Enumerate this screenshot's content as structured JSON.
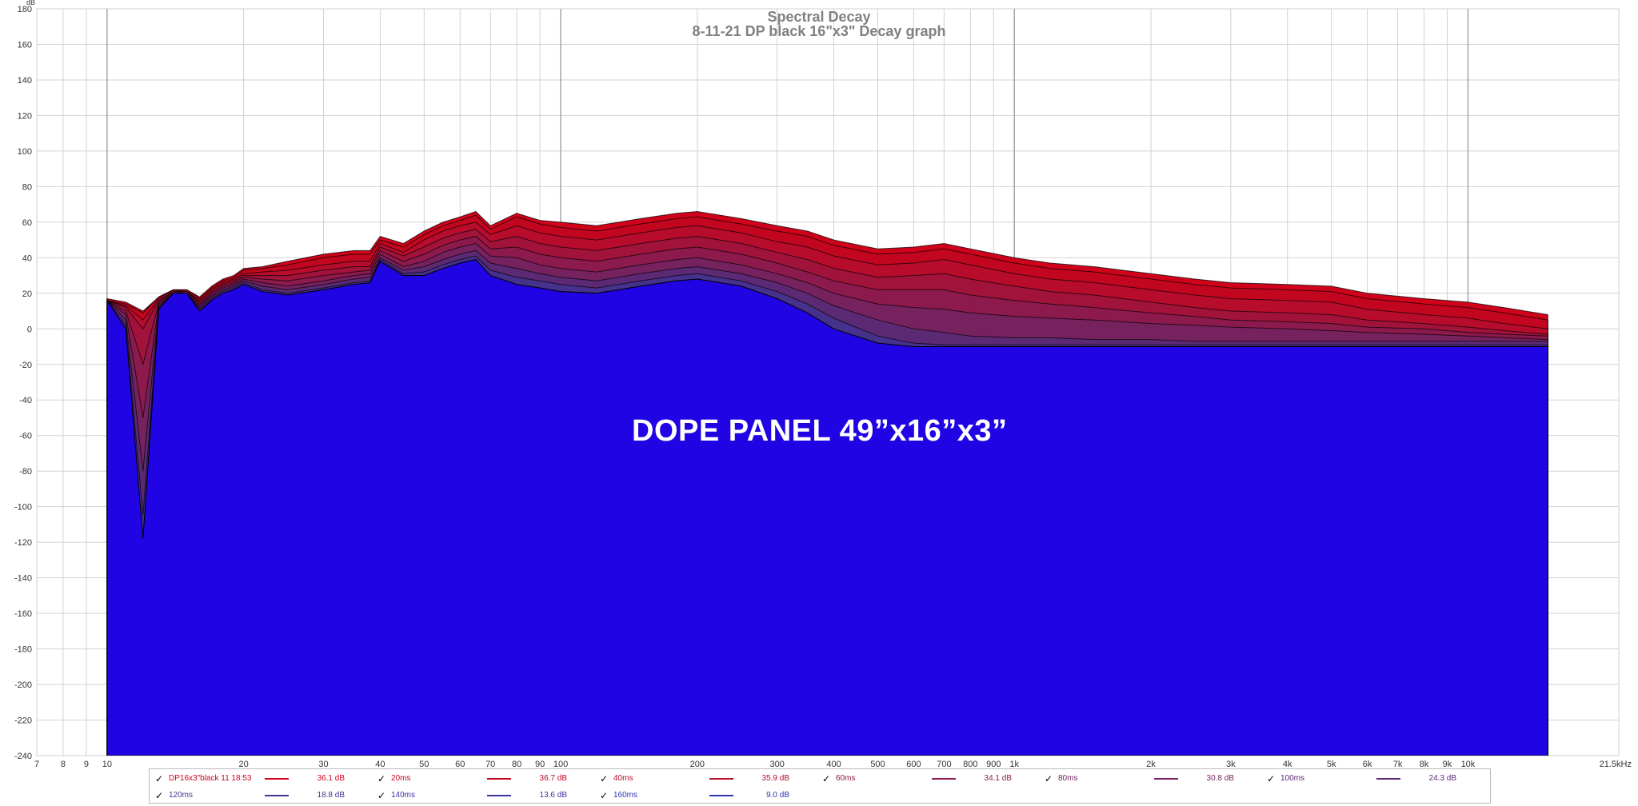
{
  "chart_data": {
    "type": "area",
    "title": "Spectral Decay",
    "subtitle": "8-11-21 DP black 16\"x3\" Decay graph",
    "ylabel": "dB",
    "xlabel": "",
    "xscale": "log",
    "xlim": [
      7,
      21500
    ],
    "ylim": [
      -240,
      180
    ],
    "grid": true,
    "y_ticks": [
      180,
      160,
      140,
      120,
      100,
      80,
      60,
      40,
      20,
      0,
      -20,
      -40,
      -60,
      -80,
      -100,
      -120,
      -140,
      -160,
      -180,
      -200,
      -220,
      -240
    ],
    "y_tick_labels": [
      "180",
      "160",
      "140",
      "120",
      "100",
      "80",
      "60",
      "40",
      "20",
      "0",
      "-20",
      "-40",
      "-60",
      "-80",
      "-100",
      "-120",
      "-140",
      "-160",
      "-180",
      "-200",
      "-220",
      "-240"
    ],
    "x_ticks": [
      7,
      8,
      9,
      10,
      20,
      30,
      40,
      50,
      60,
      70,
      80,
      90,
      100,
      200,
      300,
      400,
      500,
      600,
      700,
      800,
      900,
      1000,
      2000,
      3000,
      4000,
      5000,
      6000,
      7000,
      8000,
      9000,
      10000,
      21500
    ],
    "x_tick_labels": [
      "7",
      "8",
      "9",
      "10",
      "20",
      "30",
      "40",
      "50",
      "60",
      "70",
      "80",
      "90",
      "100",
      "200",
      "300",
      "400",
      "500",
      "600",
      "700",
      "800",
      "900",
      "1k",
      "2k",
      "3k",
      "4k",
      "5k",
      "6k",
      "7k",
      "8k",
      "9k",
      "10k",
      "21.5kHz"
    ],
    "x": [
      10,
      11,
      12,
      13,
      14,
      15,
      16,
      17,
      18,
      19,
      20,
      22,
      25,
      30,
      35,
      38,
      40,
      45,
      50,
      55,
      60,
      65,
      70,
      80,
      90,
      100,
      120,
      150,
      180,
      200,
      250,
      300,
      350,
      400,
      500,
      600,
      700,
      800,
      1000,
      1200,
      1500,
      2000,
      2500,
      3000,
      4000,
      5000,
      6000,
      8000,
      10000,
      12000,
      15000
    ],
    "series": [
      {
        "name": "DP16x3\"black 11 18:53",
        "color": "#d0021b",
        "values": [
          17,
          15,
          10,
          18,
          22,
          22,
          18,
          24,
          28,
          30,
          34,
          35,
          38,
          42,
          44,
          44,
          52,
          48,
          55,
          60,
          63,
          66,
          58,
          65,
          61,
          60,
          58,
          62,
          65,
          66,
          62,
          58,
          55,
          50,
          45,
          46,
          48,
          45,
          40,
          37,
          35,
          31,
          28,
          26,
          25,
          24,
          20,
          17,
          15,
          12,
          8
        ]
      },
      {
        "name": "20ms",
        "color": "#c3061f",
        "values": [
          16,
          14,
          9,
          18,
          22,
          22,
          17,
          23,
          27,
          29,
          33,
          34,
          36,
          40,
          42,
          42,
          50,
          46,
          53,
          58,
          61,
          64,
          56,
          63,
          59,
          57,
          55,
          59,
          62,
          63,
          59,
          55,
          52,
          47,
          42,
          43,
          45,
          42,
          37,
          34,
          32,
          28,
          25,
          23,
          22,
          21,
          17,
          14,
          12,
          9,
          5
        ]
      },
      {
        "name": "40ms",
        "color": "#b80c2c",
        "values": [
          16,
          13,
          5,
          17,
          22,
          21,
          16,
          22,
          26,
          28,
          31,
          32,
          33,
          36,
          38,
          38,
          48,
          43,
          50,
          55,
          58,
          60,
          53,
          58,
          54,
          52,
          50,
          54,
          57,
          58,
          54,
          49,
          46,
          41,
          36,
          37,
          39,
          36,
          31,
          28,
          26,
          22,
          19,
          17,
          16,
          15,
          11,
          8,
          6,
          3,
          0
        ]
      },
      {
        "name": "60ms",
        "color": "#a2133b",
        "values": [
          16,
          12,
          0,
          16,
          21,
          21,
          15,
          21,
          25,
          27,
          30,
          30,
          30,
          33,
          35,
          35,
          46,
          41,
          46,
          51,
          54,
          56,
          49,
          52,
          48,
          46,
          44,
          48,
          51,
          52,
          48,
          43,
          39,
          34,
          29,
          30,
          31,
          28,
          24,
          21,
          19,
          15,
          12,
          10,
          9,
          8,
          5,
          3,
          1,
          -1,
          -3
        ]
      },
      {
        "name": "80ms",
        "color": "#8c1a4d",
        "values": [
          16,
          10,
          -20,
          15,
          21,
          21,
          14,
          20,
          24,
          26,
          29,
          28,
          27,
          30,
          32,
          33,
          44,
          38,
          42,
          47,
          50,
          52,
          45,
          46,
          42,
          40,
          38,
          42,
          45,
          46,
          42,
          37,
          32,
          27,
          22,
          22,
          22,
          19,
          16,
          14,
          12,
          9,
          7,
          5,
          4,
          3,
          1,
          0,
          -2,
          -3,
          -4
        ]
      },
      {
        "name": "100ms",
        "color": "#76225f",
        "values": [
          16,
          8,
          -50,
          14,
          21,
          20,
          13,
          19,
          23,
          25,
          28,
          26,
          24,
          27,
          30,
          31,
          42,
          35,
          38,
          43,
          46,
          48,
          41,
          40,
          36,
          34,
          32,
          36,
          39,
          40,
          36,
          31,
          26,
          20,
          14,
          12,
          11,
          9,
          7,
          6,
          5,
          3,
          2,
          1,
          0,
          -1,
          -2,
          -3,
          -4,
          -5,
          -6
        ]
      },
      {
        "name": "120ms",
        "color": "#5c2a75",
        "values": [
          16,
          5,
          -80,
          13,
          20,
          20,
          12,
          18,
          22,
          24,
          27,
          24,
          22,
          25,
          28,
          29,
          40,
          33,
          35,
          39,
          42,
          44,
          37,
          34,
          31,
          29,
          27,
          31,
          34,
          35,
          31,
          26,
          20,
          13,
          5,
          0,
          -2,
          -4,
          -5,
          -5,
          -6,
          -6,
          -7,
          -7,
          -7,
          -7,
          -7,
          -7,
          -7,
          -7,
          -7
        ]
      },
      {
        "name": "140ms",
        "color": "#46318c",
        "values": [
          16,
          2,
          -105,
          12,
          20,
          20,
          11,
          17,
          21,
          23,
          26,
          22,
          20,
          23,
          26,
          27,
          39,
          31,
          32,
          36,
          39,
          41,
          33,
          29,
          27,
          25,
          23,
          27,
          30,
          31,
          27,
          21,
          14,
          6,
          -4,
          -8,
          -9,
          -9,
          -9,
          -9,
          -9,
          -9,
          -9,
          -9,
          -9,
          -9,
          -9,
          -9,
          -9,
          -9,
          -9
        ]
      },
      {
        "name": "160ms",
        "color": "#2f36b0",
        "values": [
          16,
          0,
          -118,
          11,
          20,
          20,
          10,
          16,
          20,
          22,
          25,
          21,
          19,
          22,
          25,
          26,
          38,
          30,
          30,
          34,
          37,
          39,
          30,
          25,
          23,
          21,
          20,
          24,
          27,
          28,
          24,
          17,
          9,
          0,
          -8,
          -10,
          -10,
          -10,
          -10,
          -10,
          -10,
          -10,
          -10,
          -10,
          -10,
          -10,
          -10,
          -10,
          -10,
          -10,
          -10
        ]
      }
    ],
    "fill_color": "#2104e3",
    "floor": -240
  },
  "annotation": "DOPE PANEL 49”x16”x3”",
  "legend": {
    "rows": [
      [
        {
          "checkbox": "✓",
          "name": "DP16x3\"black 11 18:53",
          "value": "36.1 dB",
          "color": "#d0021b"
        },
        {
          "checkbox": "✓",
          "name": "20ms",
          "value": "36.7 dB",
          "color": "#c3061f"
        },
        {
          "checkbox": "✓",
          "name": "40ms",
          "value": "35.9 dB",
          "color": "#b80c2c"
        },
        {
          "checkbox": "✓",
          "name": "60ms",
          "value": "34.1 dB",
          "color": "#8c1a4d"
        },
        {
          "checkbox": "✓",
          "name": "80ms",
          "value": "30.8 dB",
          "color": "#76225f"
        },
        {
          "checkbox": "✓",
          "name": "100ms",
          "value": "24.3 dB",
          "color": "#5c2a75"
        }
      ],
      [
        {
          "checkbox": "✓",
          "name": "120ms",
          "value": "18.8 dB",
          "color": "#46318c"
        },
        {
          "checkbox": "✓",
          "name": "140ms",
          "value": "13.6 dB",
          "color": "#3a33a0"
        },
        {
          "checkbox": "✓",
          "name": "160ms",
          "value": "9.0 dB",
          "color": "#2f36b0"
        }
      ]
    ]
  }
}
